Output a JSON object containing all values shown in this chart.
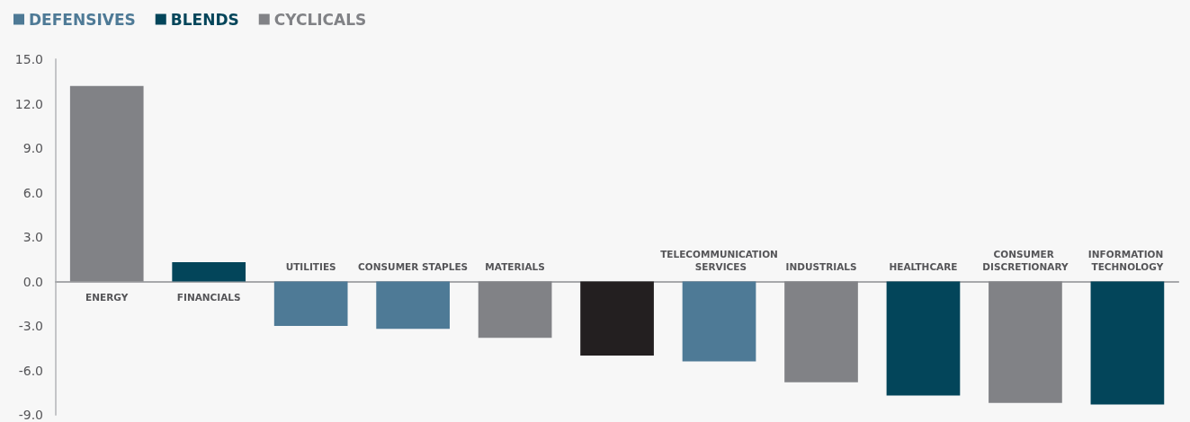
{
  "chart_data": {
    "type": "bar",
    "stacked": true,
    "legend": "top left",
    "categories": [
      "ENERGY",
      "FINANCIALS",
      "UTILITIES",
      "CONSUMER STAPLES",
      "MATERIALS",
      null,
      "TELECOMMUNICATION SERVICES",
      "INDUSTRIALS",
      "HEALTHCARE",
      "CONSUMER DISCRETIONARY",
      "INFORMATION TECHNOLOGY"
    ],
    "series": [
      {
        "name": "DEFENSIVES",
        "color": "#4e7a96",
        "values": [
          null,
          null,
          -3.0,
          -3.2,
          null,
          null,
          -5.4,
          null,
          null,
          null,
          null
        ]
      },
      {
        "name": "BLENDS",
        "color": "#03455a",
        "values": [
          null,
          1.3,
          null,
          null,
          null,
          null,
          null,
          null,
          -7.7,
          null,
          -8.3
        ]
      },
      {
        "name": "CYCLICALS",
        "color": "#818286",
        "values": [
          13.2,
          null,
          null,
          null,
          -3.8,
          null,
          null,
          -6.8,
          null,
          -8.2,
          null
        ]
      },
      {
        "color": "#231f20",
        "values": [
          null,
          null,
          null,
          null,
          null,
          -5.0,
          null,
          null,
          null,
          null,
          null
        ]
      }
    ],
    "ylim": [
      -9,
      15
    ],
    "yticks": [
      {
        "value": -9,
        "label": "-9.0"
      },
      {
        "value": -6,
        "label": "-6.0"
      },
      {
        "value": -3,
        "label": "-3.0"
      },
      {
        "value": 0,
        "label": "0.0"
      },
      {
        "value": 3,
        "label": "3.0"
      },
      {
        "value": 6,
        "label": "6.0"
      },
      {
        "value": 9,
        "label": "9.0"
      },
      {
        "value": 12,
        "label": "12.0"
      },
      {
        "value": 15,
        "label": "15.0"
      }
    ],
    "grid": false
  }
}
